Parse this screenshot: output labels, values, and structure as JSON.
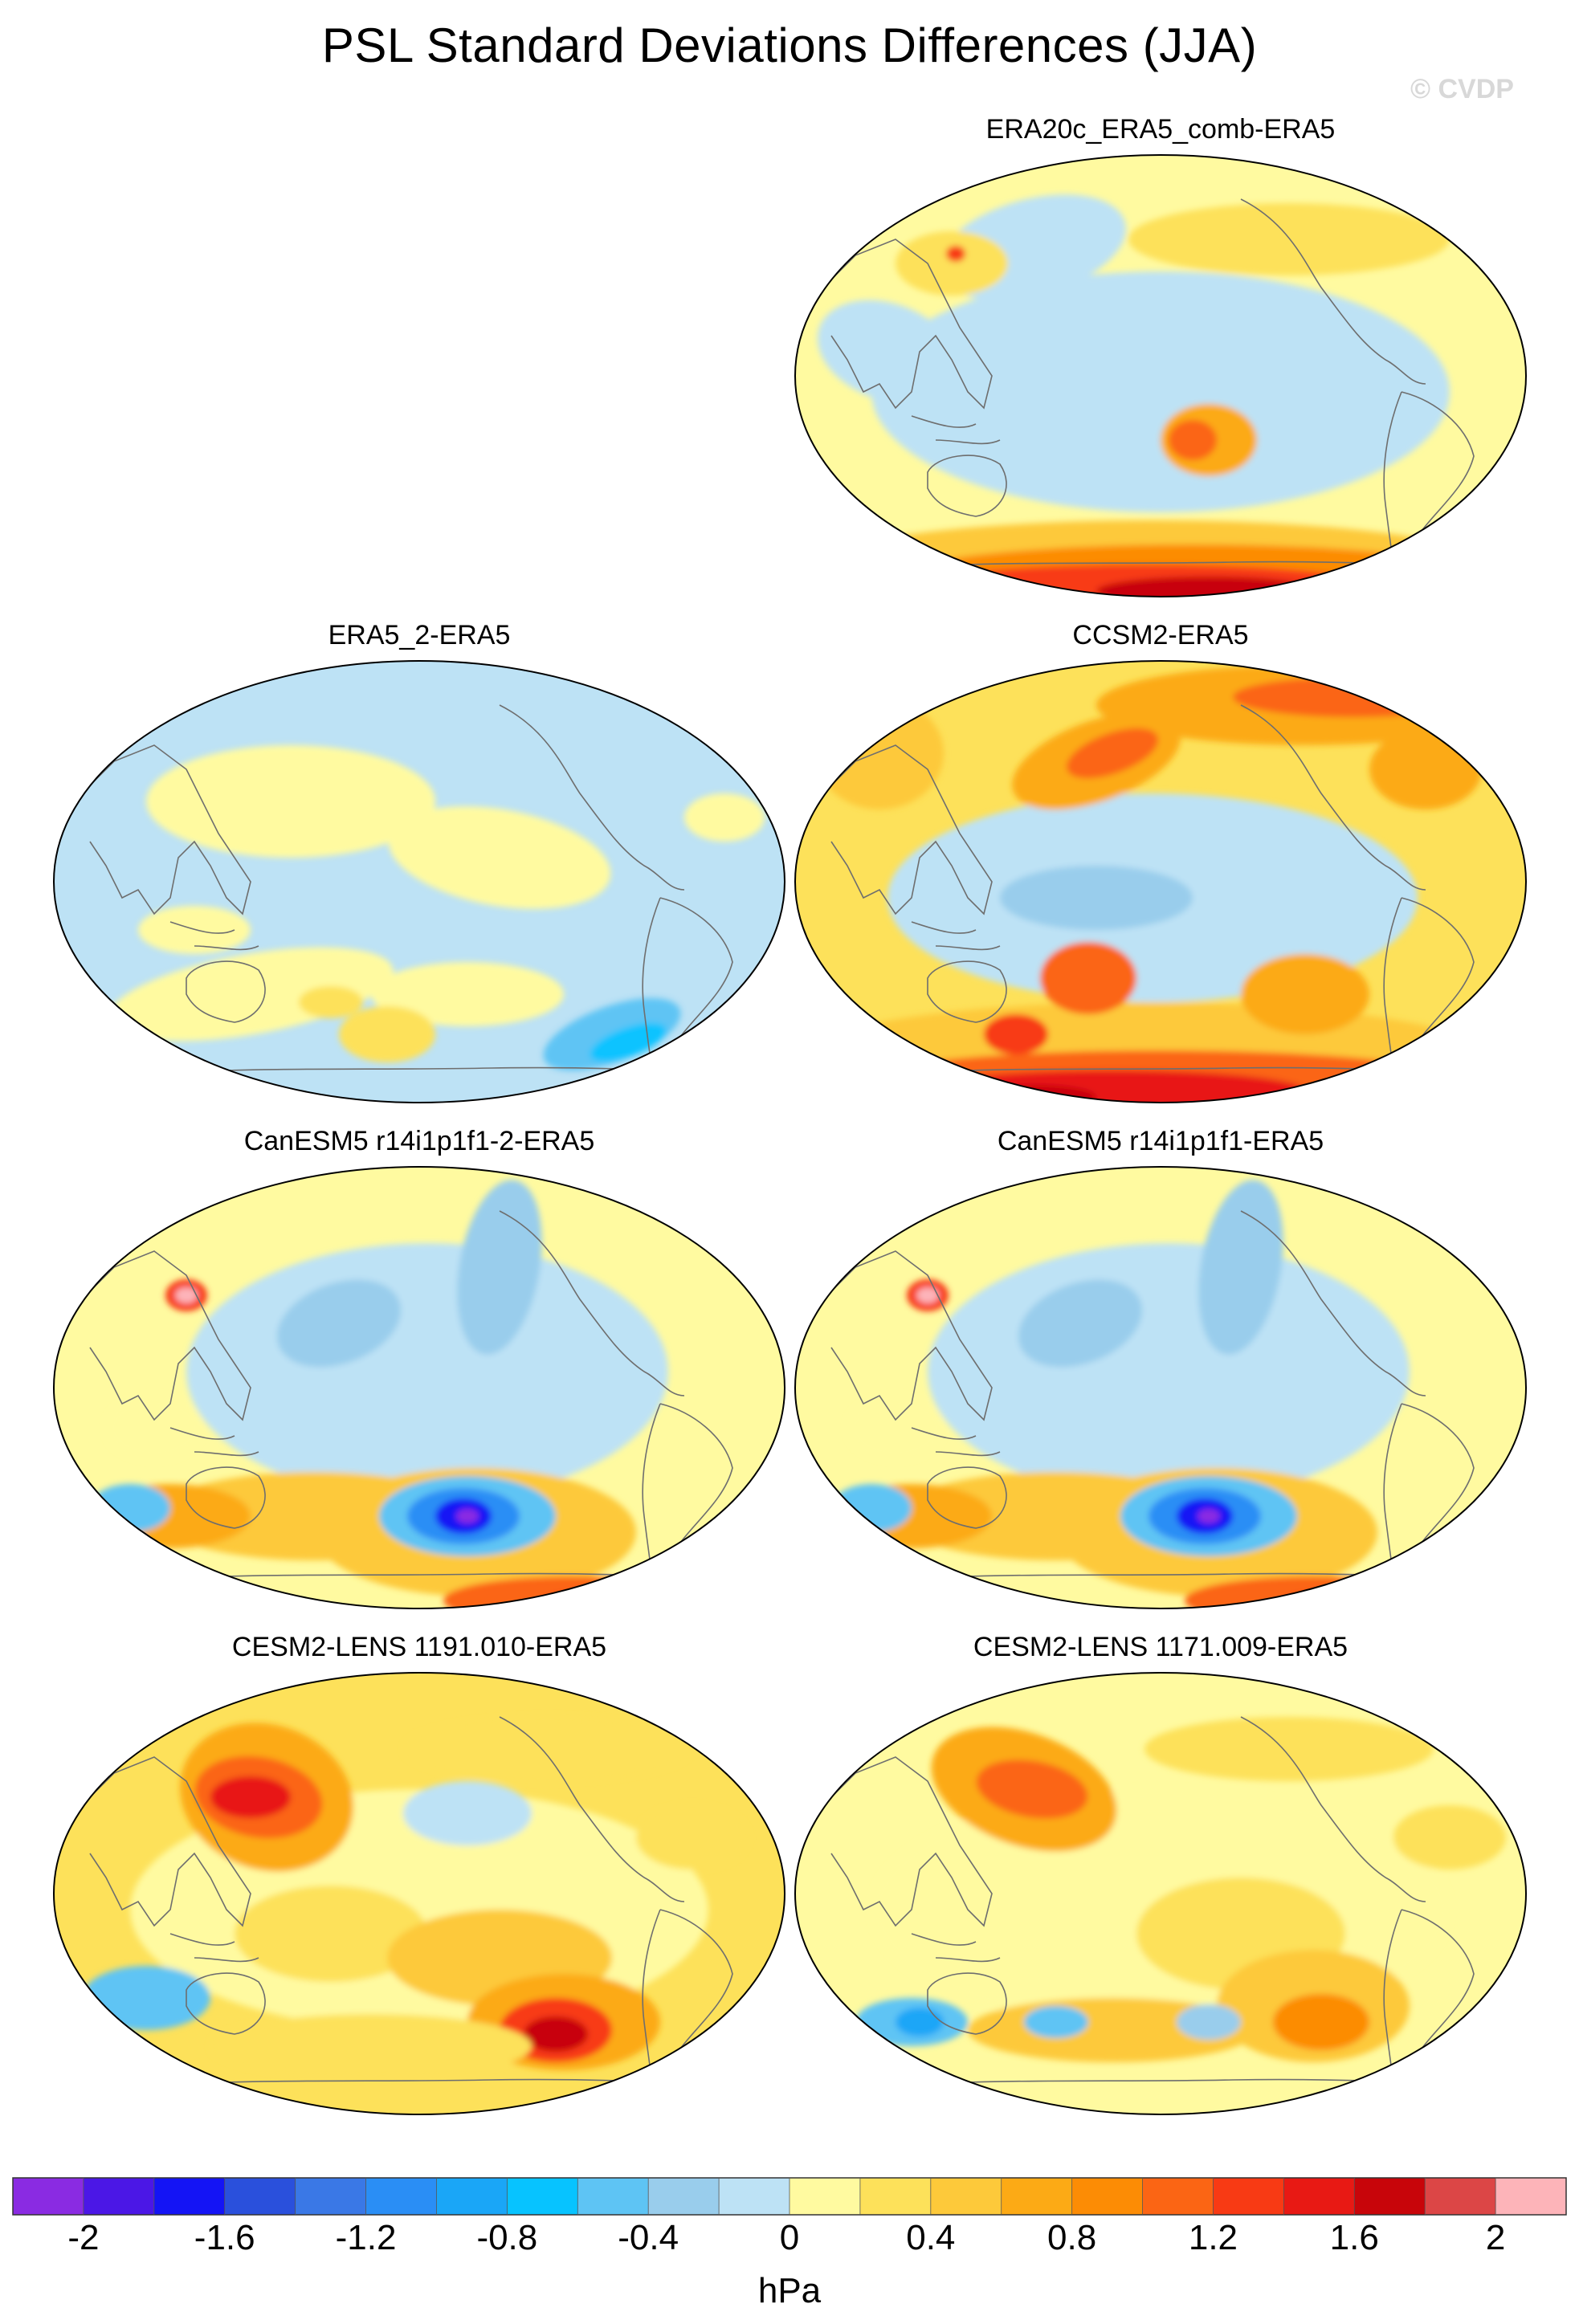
{
  "title": "PSL Standard Deviations Differences (JJA)",
  "watermark": "© CVDP",
  "colorbar": {
    "units": "hPa",
    "tick_labels": [
      "-2",
      "-1.6",
      "-1.2",
      "-0.8",
      "-0.4",
      "0",
      "0.4",
      "0.8",
      "1.2",
      "1.6",
      "2"
    ],
    "colors": [
      "#8a2be2",
      "#4b17e6",
      "#1414f5",
      "#2a50dc",
      "#3a78e6",
      "#2a8ef5",
      "#1aa6f7",
      "#07c3ff",
      "#5ec4f4",
      "#99cdec",
      "#bde2f5",
      "#fffaa0",
      "#fde15a",
      "#fdc93a",
      "#fcaa15",
      "#fc8c05",
      "#fb6514",
      "#f83a14",
      "#e81914",
      "#c8050a",
      "#dc4646",
      "#fdb4b9"
    ]
  },
  "panels": [
    {
      "id": "era20c",
      "title": "ERA20c_ERA5_comb-ERA5"
    },
    {
      "id": "era5-2",
      "title": "ERA5_2-ERA5"
    },
    {
      "id": "ccsm2",
      "title": "CCSM2-ERA5"
    },
    {
      "id": "canesm5-2",
      "title": "CanESM5 r14i1p1f1-2-ERA5"
    },
    {
      "id": "canesm5",
      "title": "CanESM5 r14i1p1f1-ERA5"
    },
    {
      "id": "cesm2-1191",
      "title": "CESM2-LENS 1191.010-ERA5"
    },
    {
      "id": "cesm2-1171",
      "title": "CESM2-LENS 1171.009-ERA5"
    }
  ]
}
